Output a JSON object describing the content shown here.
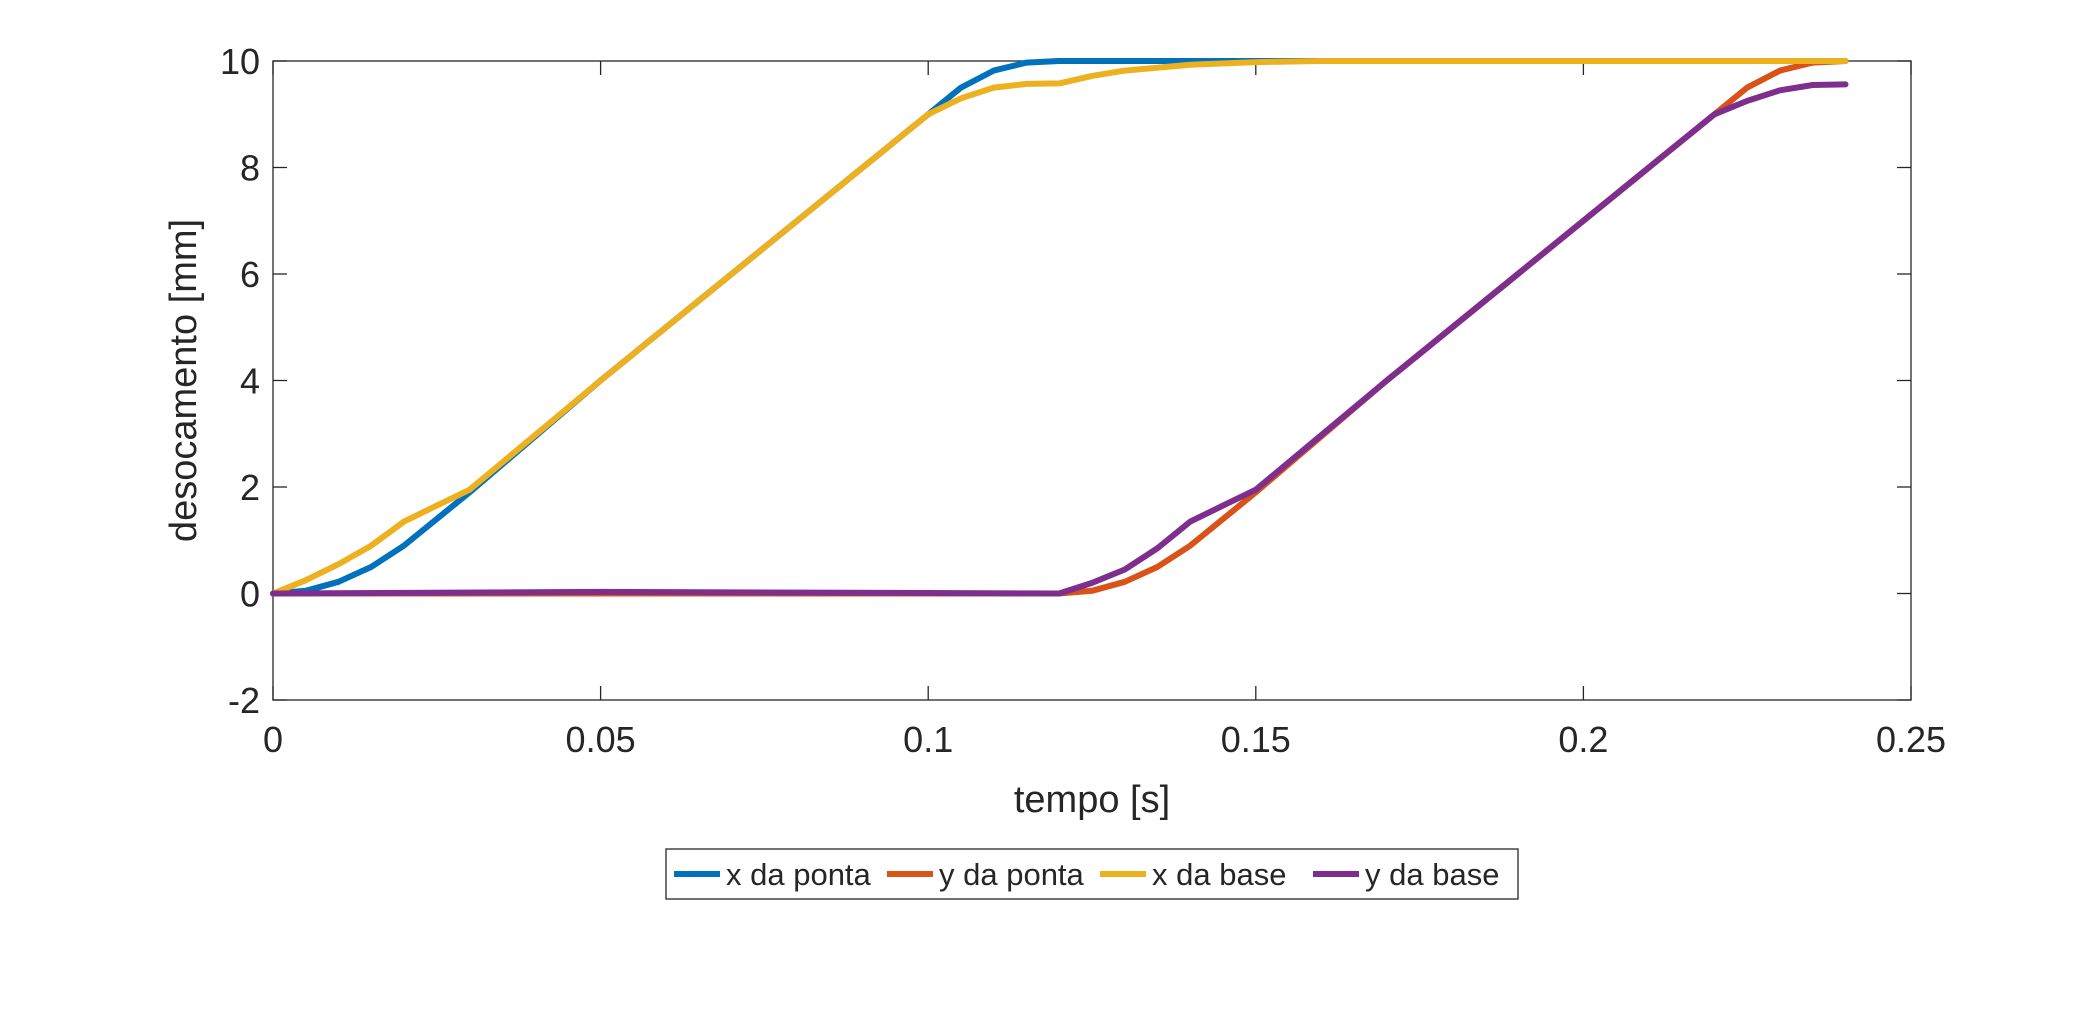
{
  "chart_data": {
    "type": "line",
    "title": "",
    "xlabel": "tempo [s]",
    "ylabel": "desocamento [mm]",
    "xlim": [
      0,
      0.25
    ],
    "ylim": [
      -2,
      10
    ],
    "xticks": [
      0,
      0.05,
      0.1,
      0.15,
      0.2,
      0.25
    ],
    "xtick_labels": [
      "0",
      "0.05",
      "0.1",
      "0.15",
      "0.2",
      "0.25"
    ],
    "yticks": [
      -2,
      0,
      2,
      4,
      6,
      8,
      10
    ],
    "ytick_labels": [
      "-2",
      "0",
      "2",
      "4",
      "6",
      "8",
      "10"
    ],
    "grid": false,
    "legend_position": "bottom-outside",
    "series": [
      {
        "name": "x da ponta",
        "color": "#0072BD",
        "points": [
          [
            0,
            0
          ],
          [
            0.005,
            0.05
          ],
          [
            0.01,
            0.22
          ],
          [
            0.015,
            0.5
          ],
          [
            0.02,
            0.9
          ],
          [
            0.03,
            1.9
          ],
          [
            0.05,
            4
          ],
          [
            0.07,
            6
          ],
          [
            0.09,
            8
          ],
          [
            0.1,
            9
          ],
          [
            0.105,
            9.5
          ],
          [
            0.11,
            9.82
          ],
          [
            0.115,
            9.97
          ],
          [
            0.12,
            10
          ],
          [
            0.24,
            10
          ]
        ]
      },
      {
        "name": "y da ponta",
        "color": "#D95319",
        "points": [
          [
            0,
            0
          ],
          [
            0.12,
            0
          ],
          [
            0.125,
            0.05
          ],
          [
            0.13,
            0.22
          ],
          [
            0.135,
            0.5
          ],
          [
            0.14,
            0.9
          ],
          [
            0.15,
            1.9
          ],
          [
            0.17,
            4
          ],
          [
            0.19,
            6
          ],
          [
            0.21,
            8
          ],
          [
            0.22,
            9
          ],
          [
            0.225,
            9.5
          ],
          [
            0.23,
            9.82
          ],
          [
            0.235,
            9.97
          ],
          [
            0.24,
            10
          ]
        ]
      },
      {
        "name": "x da base",
        "color": "#EDB120",
        "points": [
          [
            0,
            0
          ],
          [
            0.005,
            0.25
          ],
          [
            0.01,
            0.55
          ],
          [
            0.015,
            0.9
          ],
          [
            0.02,
            1.35
          ],
          [
            0.025,
            1.65
          ],
          [
            0.03,
            1.95
          ],
          [
            0.05,
            4
          ],
          [
            0.07,
            6
          ],
          [
            0.09,
            8
          ],
          [
            0.1,
            9
          ],
          [
            0.105,
            9.3
          ],
          [
            0.11,
            9.5
          ],
          [
            0.115,
            9.57
          ],
          [
            0.12,
            9.58
          ],
          [
            0.125,
            9.72
          ],
          [
            0.13,
            9.82
          ],
          [
            0.14,
            9.93
          ],
          [
            0.15,
            9.98
          ],
          [
            0.16,
            10
          ],
          [
            0.24,
            10
          ]
        ]
      },
      {
        "name": "y da base",
        "color": "#7E2F8E",
        "points": [
          [
            0,
            0
          ],
          [
            0.05,
            0.03
          ],
          [
            0.1,
            0.01
          ],
          [
            0.12,
            0
          ],
          [
            0.125,
            0.2
          ],
          [
            0.13,
            0.45
          ],
          [
            0.135,
            0.85
          ],
          [
            0.14,
            1.35
          ],
          [
            0.145,
            1.65
          ],
          [
            0.15,
            1.95
          ],
          [
            0.17,
            4
          ],
          [
            0.19,
            6
          ],
          [
            0.21,
            8
          ],
          [
            0.22,
            9
          ],
          [
            0.225,
            9.25
          ],
          [
            0.23,
            9.45
          ],
          [
            0.235,
            9.55
          ],
          [
            0.24,
            9.56
          ]
        ]
      }
    ]
  }
}
